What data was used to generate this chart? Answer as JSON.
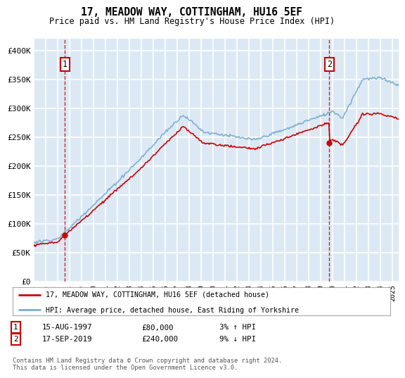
{
  "title": "17, MEADOW WAY, COTTINGHAM, HU16 5EF",
  "subtitle": "Price paid vs. HM Land Registry's House Price Index (HPI)",
  "footer": "Contains HM Land Registry data © Crown copyright and database right 2024.\nThis data is licensed under the Open Government Licence v3.0.",
  "legend_line1": "17, MEADOW WAY, COTTINGHAM, HU16 5EF (detached house)",
  "legend_line2": "HPI: Average price, detached house, East Riding of Yorkshire",
  "annotation1_date": "15-AUG-1997",
  "annotation1_price": "£80,000",
  "annotation1_hpi": "3% ↑ HPI",
  "annotation2_date": "17-SEP-2019",
  "annotation2_price": "£240,000",
  "annotation2_hpi": "9% ↓ HPI",
  "price_color": "#cc0000",
  "hpi_color": "#7aadcf",
  "background_color": "#dce9f5",
  "grid_color": "#ffffff",
  "annotation_box_color": "#cc0000",
  "sale1_x": 1997.62,
  "sale1_y": 80000,
  "sale2_x": 2019.71,
  "sale2_y": 240000,
  "ylim": [
    0,
    420000
  ],
  "xlim_start": 1995.0,
  "xlim_end": 2025.5,
  "yticks": [
    0,
    50000,
    100000,
    150000,
    200000,
    250000,
    300000,
    350000,
    400000
  ],
  "ytick_labels": [
    "£0",
    "£50K",
    "£100K",
    "£150K",
    "£200K",
    "£250K",
    "£300K",
    "£350K",
    "£400K"
  ],
  "xticks": [
    1995,
    1996,
    1997,
    1998,
    1999,
    2000,
    2001,
    2002,
    2003,
    2004,
    2005,
    2006,
    2007,
    2008,
    2009,
    2010,
    2011,
    2012,
    2013,
    2014,
    2015,
    2016,
    2017,
    2018,
    2019,
    2020,
    2021,
    2022,
    2023,
    2024,
    2025
  ]
}
